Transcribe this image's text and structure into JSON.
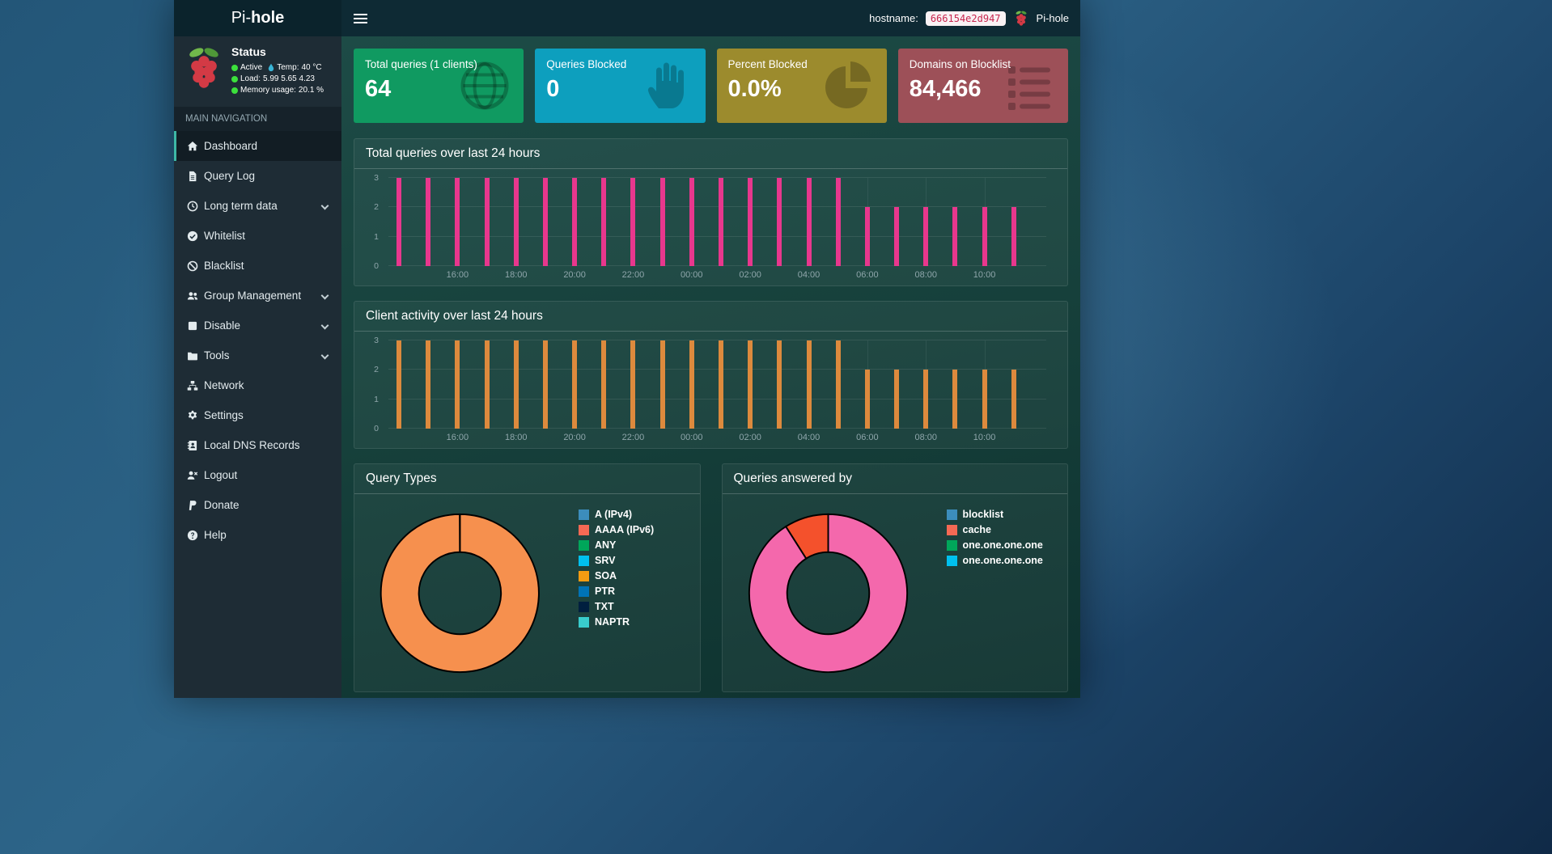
{
  "theme": {
    "accent": "#3db8a5",
    "status_ok": "#3ce03c",
    "code_bg": "#f9f2f4",
    "code_text": "#c7254e"
  },
  "navbar": {
    "brand_light": "Pi-",
    "brand_bold": "hole",
    "hostname_label": "hostname:",
    "hostname_value": "666154e2d947",
    "account_label": "Pi-hole"
  },
  "sidebar": {
    "status": {
      "title": "Status",
      "active": "Active",
      "temp_label": "Temp:",
      "temp_value": "40 °C",
      "load_label": "Load:",
      "load_values": "5.99  5.65  4.23",
      "memory_label": "Memory usage:",
      "memory_value": "20.1 %"
    },
    "nav_header": "MAIN NAVIGATION",
    "items": [
      {
        "label": "Dashboard",
        "icon": "home",
        "active": true
      },
      {
        "label": "Query Log",
        "icon": "file"
      },
      {
        "label": "Long term data",
        "icon": "clock",
        "expandable": true
      },
      {
        "label": "Whitelist",
        "icon": "check"
      },
      {
        "label": "Blacklist",
        "icon": "ban"
      },
      {
        "label": "Group Management",
        "icon": "users",
        "expandable": true
      },
      {
        "label": "Disable",
        "icon": "stop",
        "expandable": true
      },
      {
        "label": "Tools",
        "icon": "folder",
        "expandable": true
      },
      {
        "label": "Network",
        "icon": "network"
      },
      {
        "label": "Settings",
        "icon": "gears"
      },
      {
        "label": "Local DNS Records",
        "icon": "book"
      },
      {
        "label": "Logout",
        "icon": "logout"
      },
      {
        "label": "Donate",
        "icon": "paypal"
      },
      {
        "label": "Help",
        "icon": "question"
      }
    ]
  },
  "cards": [
    {
      "title": "Total queries (1 clients)",
      "value": "64",
      "color": "#109a61",
      "icon": "globe"
    },
    {
      "title": "Queries Blocked",
      "value": "0",
      "color": "#0d9fbe",
      "icon": "hand"
    },
    {
      "title": "Percent Blocked",
      "value": "0.0%",
      "color": "#9c8b2d",
      "icon": "pie"
    },
    {
      "title": "Domains on Blocklist",
      "value": "84,466",
      "color": "#9d5058",
      "icon": "list"
    }
  ],
  "charts": {
    "total_queries": {
      "type": "bar",
      "title": "Total queries over last 24 hours",
      "color": "#e8378d",
      "ymax": 3,
      "y_ticks": [
        0,
        1,
        2,
        3
      ],
      "x": [
        "14:00",
        "15:00",
        "16:00",
        "17:00",
        "18:00",
        "19:00",
        "20:00",
        "21:00",
        "22:00",
        "23:00",
        "00:00",
        "01:00",
        "02:00",
        "03:00",
        "04:00",
        "05:00",
        "06:00",
        "07:00",
        "08:00",
        "09:00",
        "10:00",
        "11:00"
      ],
      "values": [
        3,
        3,
        3,
        3,
        3,
        3,
        3,
        3,
        3,
        3,
        3,
        3,
        3,
        3,
        3,
        3,
        2,
        2,
        2,
        2,
        2,
        2
      ],
      "x_labels": [
        {
          "text": "16:00",
          "slot": 2
        },
        {
          "text": "18:00",
          "slot": 4
        },
        {
          "text": "20:00",
          "slot": 6
        },
        {
          "text": "22:00",
          "slot": 8
        },
        {
          "text": "00:00",
          "slot": 10
        },
        {
          "text": "02:00",
          "slot": 12
        },
        {
          "text": "04:00",
          "slot": 14
        },
        {
          "text": "06:00",
          "slot": 16
        },
        {
          "text": "08:00",
          "slot": 18
        },
        {
          "text": "10:00",
          "slot": 20
        }
      ]
    },
    "client_activity": {
      "type": "bar",
      "title": "Client activity over last 24 hours",
      "color": "#dd8a3d",
      "ymax": 3,
      "y_ticks": [
        0,
        1,
        2,
        3
      ],
      "x": [
        "14:00",
        "15:00",
        "16:00",
        "17:00",
        "18:00",
        "19:00",
        "20:00",
        "21:00",
        "22:00",
        "23:00",
        "00:00",
        "01:00",
        "02:00",
        "03:00",
        "04:00",
        "05:00",
        "06:00",
        "07:00",
        "08:00",
        "09:00",
        "10:00",
        "11:00"
      ],
      "values": [
        3,
        3,
        3,
        3,
        3,
        3,
        3,
        3,
        3,
        3,
        3,
        3,
        3,
        3,
        3,
        3,
        2,
        2,
        2,
        2,
        2,
        2
      ],
      "x_labels": [
        {
          "text": "16:00",
          "slot": 2
        },
        {
          "text": "18:00",
          "slot": 4
        },
        {
          "text": "20:00",
          "slot": 6
        },
        {
          "text": "22:00",
          "slot": 8
        },
        {
          "text": "00:00",
          "slot": 10
        },
        {
          "text": "02:00",
          "slot": 12
        },
        {
          "text": "04:00",
          "slot": 14
        },
        {
          "text": "06:00",
          "slot": 16
        },
        {
          "text": "08:00",
          "slot": 18
        },
        {
          "text": "10:00",
          "slot": 20
        }
      ]
    },
    "query_types": {
      "type": "donut",
      "title": "Query Types",
      "slices": [
        {
          "label": "SOA",
          "value": 100,
          "color": "#f6904e"
        }
      ],
      "legend": [
        {
          "label": "A (IPv4)",
          "color": "#3c8dbc"
        },
        {
          "label": "AAAA (IPv6)",
          "color": "#f56954"
        },
        {
          "label": "ANY",
          "color": "#00a65a"
        },
        {
          "label": "SRV",
          "color": "#00c0ef"
        },
        {
          "label": "SOA",
          "color": "#f39c12"
        },
        {
          "label": "PTR",
          "color": "#0073b7"
        },
        {
          "label": "TXT",
          "color": "#001f3f"
        },
        {
          "label": "NAPTR",
          "color": "#39cccc"
        }
      ]
    },
    "queries_answered_by": {
      "type": "donut",
      "title": "Queries answered by",
      "slices": [
        {
          "label": "one.one.one.one",
          "value": 91,
          "color": "#f468ac"
        },
        {
          "label": "cache",
          "value": 9,
          "color": "#f4512c"
        }
      ],
      "legend": [
        {
          "label": "blocklist",
          "color": "#3c8dbc"
        },
        {
          "label": "cache",
          "color": "#f56954"
        },
        {
          "label": "one.one.one.one",
          "color": "#00a65a"
        },
        {
          "label": "one.one.one.one",
          "color": "#00c0ef"
        }
      ]
    }
  }
}
